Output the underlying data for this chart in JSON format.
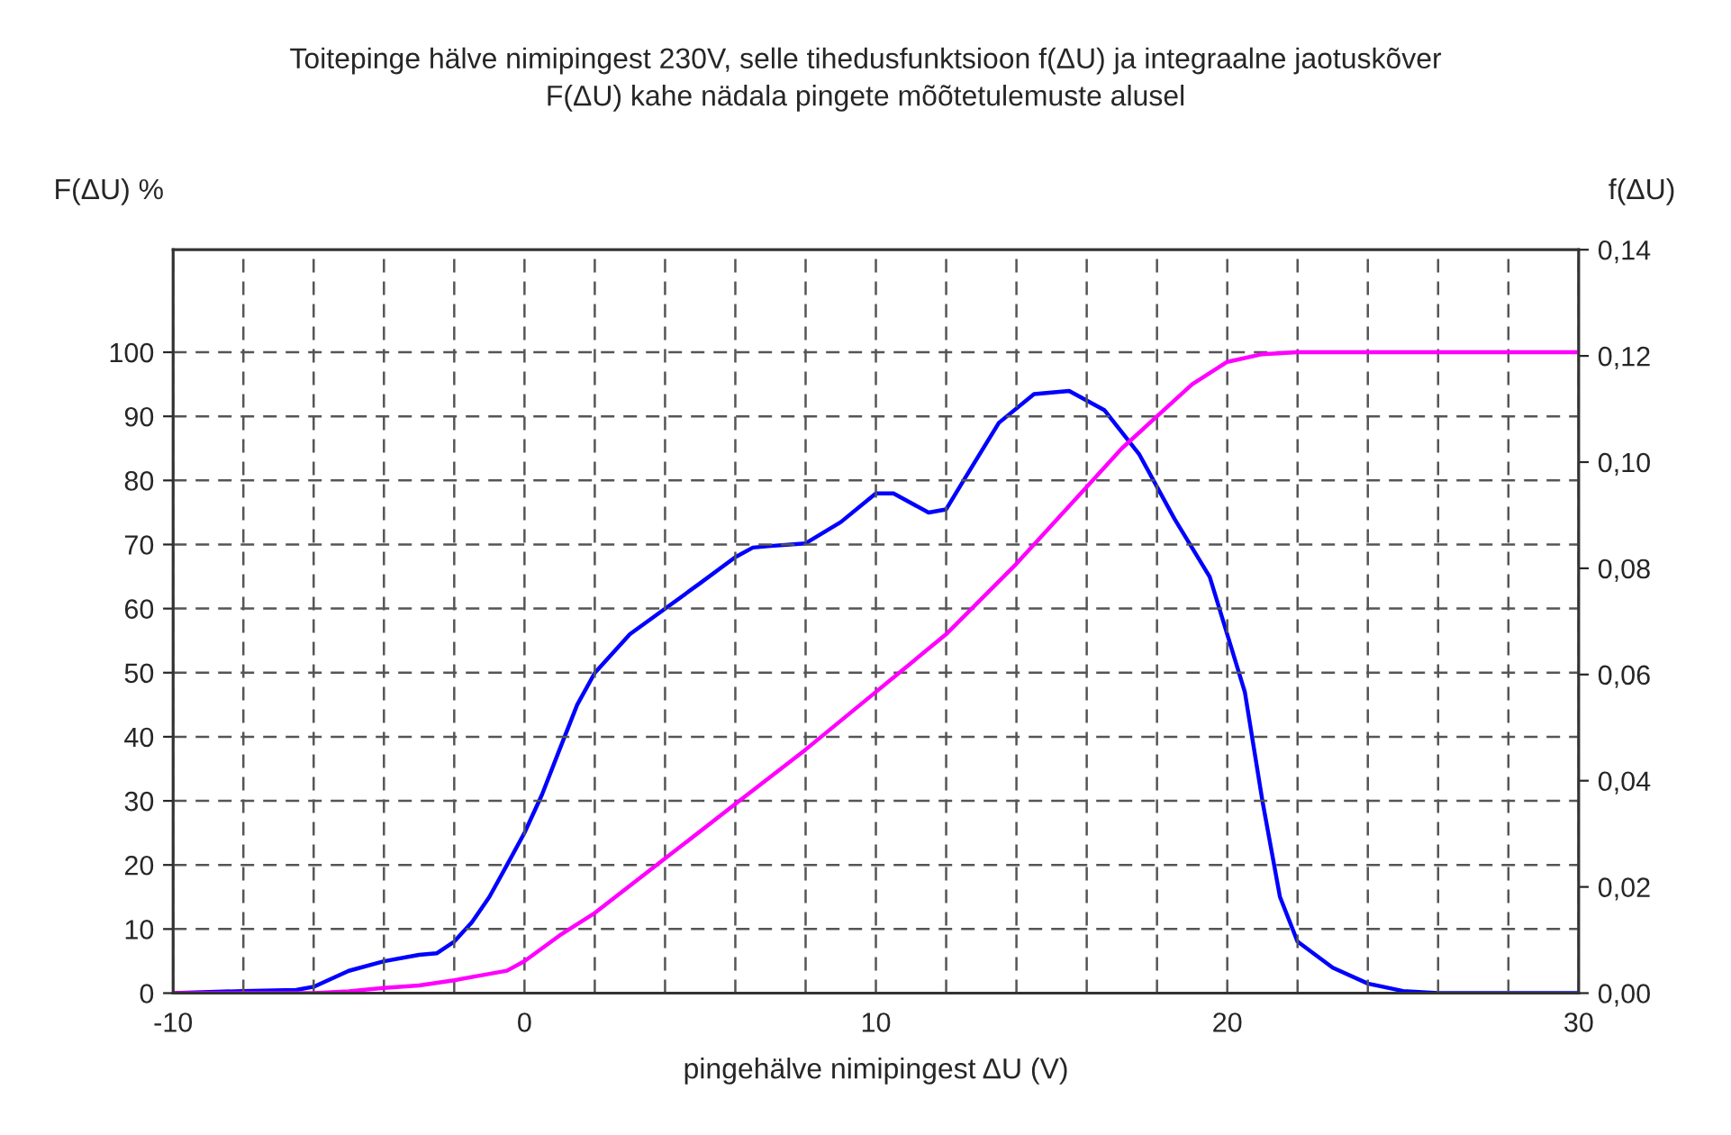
{
  "chart_data": {
    "type": "line",
    "title": "Toitepinge hälve nimipingest 230V, selle tihedusfunktsioon f(ΔU) ja integraalne jaotuskõver\nF(ΔU) kahe nädala pingete mõõtetulemuste alusel",
    "xlabel": "pingehälve nimipingest ΔU (V)",
    "ylabel": "F(ΔU) %",
    "y2label": "f(ΔU)",
    "xlim": [
      -10,
      30
    ],
    "xticks": [
      -10,
      {
        "value": -8,
        "label": null
      },
      {
        "value": -6,
        "label": null
      },
      {
        "value": -4,
        "label": null
      },
      {
        "value": -2,
        "label": null
      },
      0,
      {
        "value": 2,
        "label": null
      },
      {
        "value": 4,
        "label": null
      },
      {
        "value": 6,
        "label": null
      },
      {
        "value": 8,
        "label": null
      },
      10,
      {
        "value": 12,
        "label": null
      },
      {
        "value": 14,
        "label": null
      },
      {
        "value": 16,
        "label": null
      },
      {
        "value": 18,
        "label": null
      },
      20,
      {
        "value": 22,
        "label": null
      },
      {
        "value": 24,
        "label": null
      },
      {
        "value": 26,
        "label": null
      },
      {
        "value": 28,
        "label": null
      },
      30
    ],
    "ylim": [
      0,
      116
    ],
    "yticks": [
      0,
      10,
      20,
      30,
      40,
      50,
      60,
      70,
      80,
      90,
      100
    ],
    "y2lim": [
      0,
      0.14
    ],
    "y2ticks": [
      {
        "value": 0,
        "label": "0,00"
      },
      {
        "value": 0.02,
        "label": "0,02"
      },
      {
        "value": 0.04,
        "label": "0,04"
      },
      {
        "value": 0.06,
        "label": "0,06"
      },
      {
        "value": 0.08,
        "label": "0,08"
      },
      {
        "value": 0.1,
        "label": "0,10"
      },
      {
        "value": 0.12,
        "label": "0,12"
      },
      {
        "value": 0.14,
        "label": "0,14"
      }
    ],
    "grid": true,
    "legend": false,
    "marker": "none",
    "line_style": "solid",
    "series": [
      {
        "color": "#ff00ff",
        "axis": "y",
        "x": [
          -10,
          -6,
          -5,
          -4,
          -3,
          -2,
          -1,
          -0.5,
          0,
          1,
          2,
          4,
          6,
          8,
          10,
          12,
          14,
          16,
          17,
          18,
          19,
          20,
          21,
          22,
          30
        ],
        "values": [
          0,
          0,
          0.3,
          0.8,
          1.2,
          2,
          3,
          3.5,
          5,
          9,
          12.5,
          21,
          29.5,
          38,
          47,
          56,
          67,
          79,
          85,
          90,
          95,
          98.5,
          99.7,
          100,
          100
        ]
      },
      {
        "color": "#0000ff",
        "axis": "y2",
        "x": [
          -10,
          -8,
          -6.5,
          -6,
          -5,
          -4,
          -3,
          -2.5,
          -2,
          -1.5,
          -1,
          -0.5,
          0,
          0.5,
          1,
          1.5,
          2,
          3,
          4,
          5,
          6,
          6.5,
          7,
          8,
          9,
          10,
          10.5,
          11.5,
          12,
          12.5,
          13.5,
          14.5,
          15.5,
          16.5,
          17.5,
          18.5,
          19.5,
          20.5,
          21,
          21.5,
          22,
          23,
          24,
          25,
          26,
          30
        ],
        "values": [
          0,
          0.0004,
          0.0006,
          0.0012,
          0.0042,
          0.006,
          0.0072,
          0.0075,
          0.0097,
          0.0133,
          0.0181,
          0.0241,
          0.0302,
          0.0374,
          0.0459,
          0.0543,
          0.0603,
          0.0676,
          0.0724,
          0.0772,
          0.0821,
          0.0839,
          0.0842,
          0.0847,
          0.0887,
          0.0941,
          0.0941,
          0.0905,
          0.0911,
          0.0966,
          0.1074,
          0.1128,
          0.1134,
          0.1098,
          0.1014,
          0.0893,
          0.0784,
          0.0567,
          0.0362,
          0.0181,
          0.0097,
          0.0048,
          0.0018,
          0.0004,
          0,
          0
        ]
      }
    ]
  }
}
